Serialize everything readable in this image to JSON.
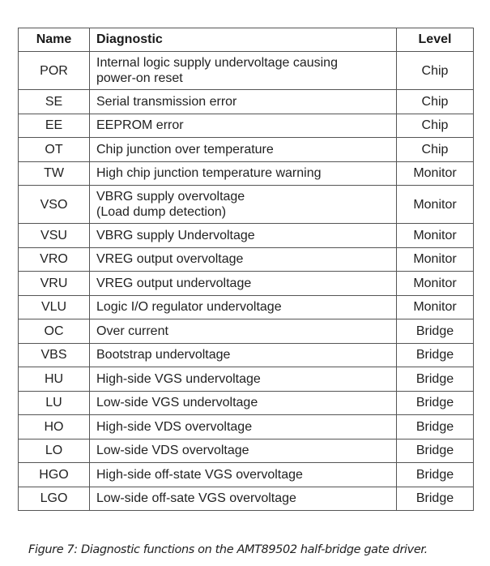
{
  "table": {
    "headers": {
      "name": "Name",
      "diagnostic": "Diagnostic",
      "level": "Level"
    },
    "rows": [
      {
        "name": "POR",
        "diagnostic_lines": [
          "Internal logic supply undervoltage causing",
          "power-on reset"
        ],
        "level": "Chip"
      },
      {
        "name": "SE",
        "diagnostic_lines": [
          "Serial transmission error"
        ],
        "level": "Chip"
      },
      {
        "name": "EE",
        "diagnostic_lines": [
          "EEPROM error"
        ],
        "level": "Chip"
      },
      {
        "name": "OT",
        "diagnostic_lines": [
          "Chip junction over temperature"
        ],
        "level": "Chip"
      },
      {
        "name": "TW",
        "diagnostic_lines": [
          "High chip junction temperature warning"
        ],
        "level": "Monitor"
      },
      {
        "name": "VSO",
        "diagnostic_lines": [
          "VBRG supply overvoltage",
          "(Load dump detection)"
        ],
        "level": "Monitor"
      },
      {
        "name": "VSU",
        "diagnostic_lines": [
          "VBRG supply Undervoltage"
        ],
        "level": "Monitor"
      },
      {
        "name": "VRO",
        "diagnostic_lines": [
          "VREG output overvoltage"
        ],
        "level": "Monitor"
      },
      {
        "name": "VRU",
        "diagnostic_lines": [
          "VREG output undervoltage"
        ],
        "level": "Monitor"
      },
      {
        "name": "VLU",
        "diagnostic_lines": [
          "Logic I/O regulator undervoltage"
        ],
        "level": "Monitor"
      },
      {
        "name": "OC",
        "diagnostic_lines": [
          "Over current"
        ],
        "level": "Bridge"
      },
      {
        "name": "VBS",
        "diagnostic_lines": [
          "Bootstrap undervoltage"
        ],
        "level": "Bridge"
      },
      {
        "name": "HU",
        "diagnostic_lines": [
          "High-side VGS undervoltage"
        ],
        "level": "Bridge"
      },
      {
        "name": "LU",
        "diagnostic_lines": [
          "Low-side VGS undervoltage"
        ],
        "level": "Bridge"
      },
      {
        "name": "HO",
        "diagnostic_lines": [
          "High-side VDS overvoltage"
        ],
        "level": "Bridge"
      },
      {
        "name": "LO",
        "diagnostic_lines": [
          "Low-side VDS overvoltage"
        ],
        "level": "Bridge"
      },
      {
        "name": "HGO",
        "diagnostic_lines": [
          "High-side off-state VGS overvoltage"
        ],
        "level": "Bridge"
      },
      {
        "name": "LGO",
        "diagnostic_lines": [
          "Low-side off-sate VGS overvoltage"
        ],
        "level": "Bridge"
      }
    ]
  },
  "caption": "Figure 7: Diagnostic functions on the AMT89502 half-bridge gate driver."
}
